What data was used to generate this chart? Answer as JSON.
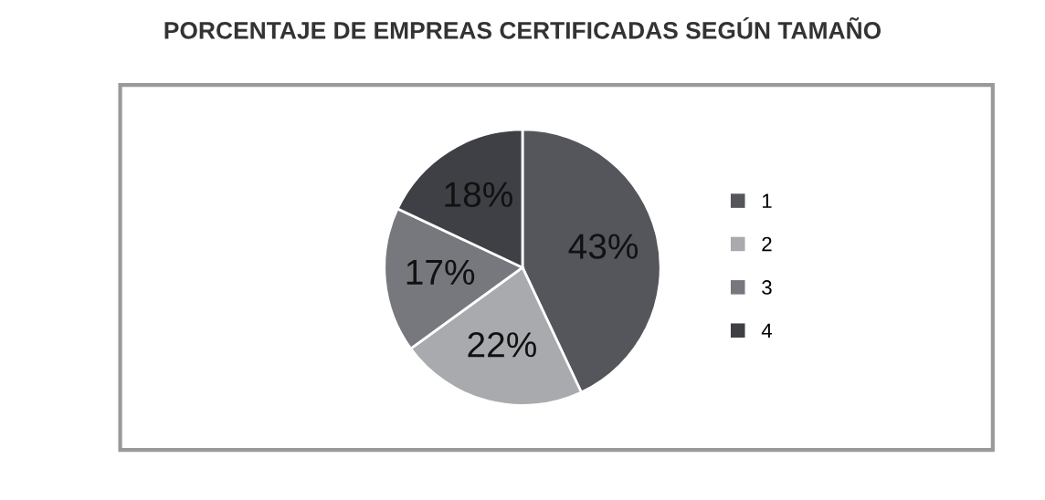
{
  "chart_data": {
    "type": "pie",
    "title": "PORCENTAJE DE EMPREAS CERTIFICADAS SEGÚN TAMAÑO",
    "categories": [
      "1",
      "2",
      "3",
      "4"
    ],
    "values": [
      43,
      22,
      17,
      18
    ],
    "value_labels": [
      "43%",
      "22%",
      "17%",
      "18%"
    ],
    "colors": [
      "#54565c",
      "#a9aaad",
      "#76787e",
      "#3f4045"
    ],
    "legend": "right"
  }
}
